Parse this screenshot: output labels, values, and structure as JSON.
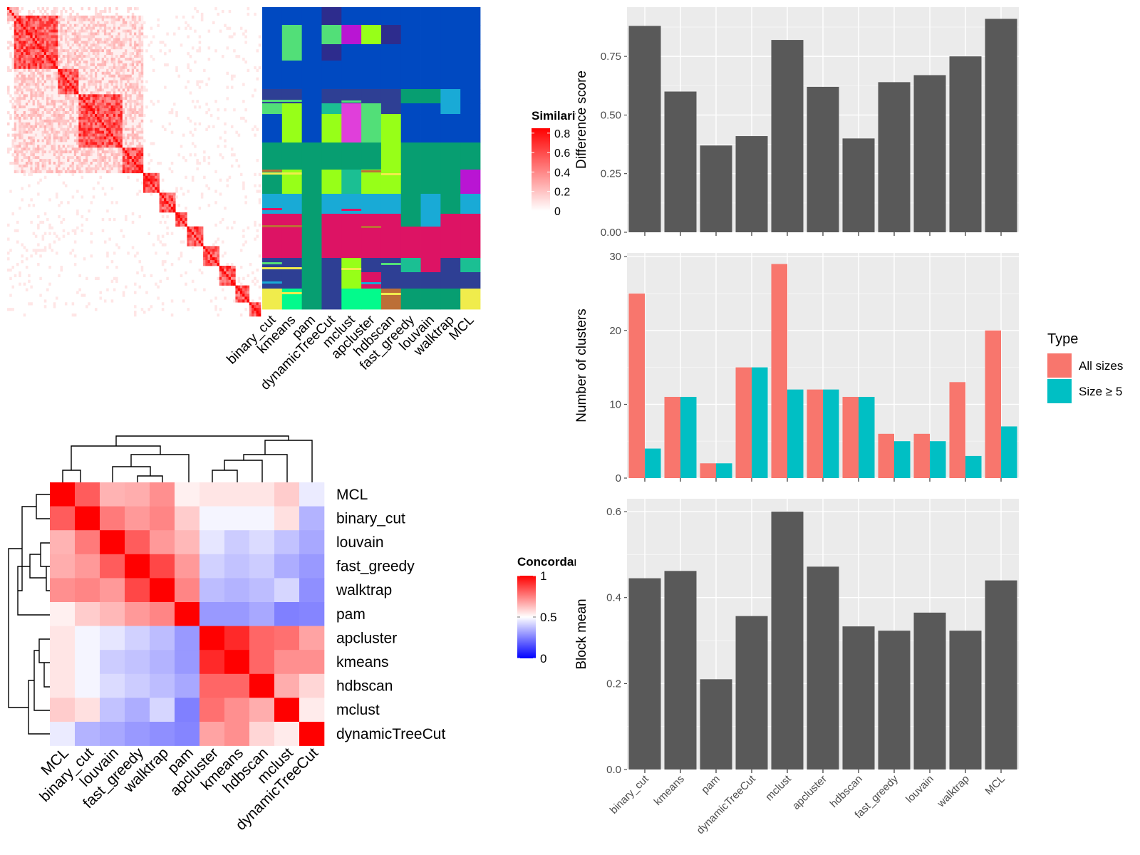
{
  "chart_data": [
    {
      "type": "heatmap",
      "panel": "similarity",
      "legend": {
        "title": "Similarity",
        "ticks": [
          "0",
          "0.2",
          "0.4",
          "0.6",
          "0.8"
        ],
        "colors": {
          "low": "#ffffff",
          "high": "#ff0000"
        }
      },
      "columns": [
        "binary_cut",
        "kmeans",
        "pam",
        "dynamicTreeCut",
        "mclust",
        "apcluster",
        "hdbscan",
        "fast_greedy",
        "louvain",
        "walktrap",
        "MCL"
      ],
      "blocks": [
        [
          0.03,
          0.2
        ],
        [
          0.2,
          0.28
        ],
        [
          0.28,
          0.45
        ],
        [
          0.45,
          0.54
        ],
        [
          0.54,
          0.6
        ],
        [
          0.6,
          0.66
        ],
        [
          0.66,
          0.71
        ],
        [
          0.71,
          0.77
        ],
        [
          0.77,
          0.84
        ],
        [
          0.84,
          0.9
        ],
        [
          0.9,
          0.95
        ],
        [
          0.95,
          1.0
        ]
      ],
      "palette": [
        "#0049c1",
        "#079e71",
        "#dd1364",
        "#2e3f94",
        "#19aad6",
        "#97ff18",
        "#52df78",
        "#b915d3",
        "#e03fda",
        "#ff66b0",
        "#03fa8c",
        "#bc6f37",
        "#f0ec4c",
        "#1bbf93",
        "#2d2c8d"
      ]
    },
    {
      "type": "heatmap",
      "panel": "concordance",
      "legend": {
        "title": "Concordance",
        "ticks": [
          "0",
          "0.5",
          "1"
        ],
        "colors": {
          "low": "#0000ff",
          "mid": "#ffffff",
          "high": "#ff0000"
        }
      },
      "rows": [
        "MCL",
        "binary_cut",
        "louvain",
        "fast_greedy",
        "walktrap",
        "pam",
        "apcluster",
        "kmeans",
        "hdbscan",
        "mclust",
        "dynamicTreeCut"
      ],
      "columns": [
        "MCL",
        "binary_cut",
        "louvain",
        "fast_greedy",
        "walktrap",
        "pam",
        "apcluster",
        "kmeans",
        "hdbscan",
        "mclust",
        "dynamicTreeCut"
      ],
      "values": [
        [
          1.0,
          0.82,
          0.65,
          0.66,
          0.72,
          0.53,
          0.55,
          0.55,
          0.55,
          0.6,
          0.46
        ],
        [
          0.82,
          1.0,
          0.76,
          0.7,
          0.74,
          0.6,
          0.48,
          0.48,
          0.48,
          0.56,
          0.35
        ],
        [
          0.65,
          0.76,
          1.0,
          0.82,
          0.7,
          0.64,
          0.45,
          0.4,
          0.43,
          0.38,
          0.33
        ],
        [
          0.66,
          0.7,
          0.82,
          1.0,
          0.86,
          0.7,
          0.41,
          0.38,
          0.4,
          0.34,
          0.3
        ],
        [
          0.72,
          0.74,
          0.7,
          0.86,
          1.0,
          0.74,
          0.37,
          0.35,
          0.37,
          0.42,
          0.28
        ],
        [
          0.53,
          0.6,
          0.64,
          0.7,
          0.74,
          1.0,
          0.3,
          0.3,
          0.33,
          0.25,
          0.26
        ],
        [
          0.55,
          0.48,
          0.45,
          0.41,
          0.37,
          0.3,
          1.0,
          0.92,
          0.8,
          0.78,
          0.68
        ],
        [
          0.55,
          0.48,
          0.4,
          0.38,
          0.35,
          0.3,
          0.92,
          1.0,
          0.8,
          0.72,
          0.72
        ],
        [
          0.55,
          0.48,
          0.43,
          0.4,
          0.37,
          0.33,
          0.8,
          0.8,
          1.0,
          0.66,
          0.58
        ],
        [
          0.6,
          0.56,
          0.38,
          0.34,
          0.42,
          0.25,
          0.78,
          0.72,
          0.66,
          1.0,
          0.54
        ],
        [
          0.46,
          0.35,
          0.33,
          0.3,
          0.28,
          0.26,
          0.68,
          0.72,
          0.58,
          0.54,
          1.0
        ]
      ]
    },
    {
      "type": "bar",
      "panel": "difference",
      "categories": [
        "binary_cut",
        "kmeans",
        "pam",
        "dynamicTreeCut",
        "mclust",
        "apcluster",
        "hdbscan",
        "fast_greedy",
        "louvain",
        "walktrap",
        "MCL"
      ],
      "values": [
        0.88,
        0.6,
        0.37,
        0.41,
        0.82,
        0.62,
        0.4,
        0.64,
        0.67,
        0.75,
        0.91
      ],
      "ylabel": "Difference score",
      "ylim": [
        0,
        0.96
      ],
      "yticks": [
        "0.00",
        "0.25",
        "0.50",
        "0.75"
      ],
      "bar_color": "#595959"
    },
    {
      "type": "bar",
      "panel": "clusters",
      "categories": [
        "binary_cut",
        "kmeans",
        "pam",
        "dynamicTreeCut",
        "mclust",
        "apcluster",
        "hdbscan",
        "fast_greedy",
        "louvain",
        "walktrap",
        "MCL"
      ],
      "series": [
        {
          "name": "All sizes",
          "values": [
            25,
            11,
            2,
            15,
            29,
            12,
            11,
            6,
            6,
            13,
            20
          ],
          "color": "#f8766d"
        },
        {
          "name": "Size ≥ 5",
          "values": [
            4,
            11,
            2,
            15,
            12,
            12,
            11,
            5,
            5,
            3,
            7
          ],
          "color": "#00bfc4"
        }
      ],
      "ylabel": "Number of clusters",
      "ylim": [
        0,
        30.5
      ],
      "yticks": [
        "0",
        "10",
        "20",
        "30"
      ],
      "legend_title": "Type",
      "legend_position": "right"
    },
    {
      "type": "bar",
      "panel": "blockmean",
      "categories": [
        "binary_cut",
        "kmeans",
        "pam",
        "dynamicTreeCut",
        "mclust",
        "apcluster",
        "hdbscan",
        "fast_greedy",
        "louvain",
        "walktrap",
        "MCL"
      ],
      "values": [
        0.445,
        0.462,
        0.21,
        0.357,
        0.6,
        0.472,
        0.333,
        0.323,
        0.365,
        0.323,
        0.44
      ],
      "ylabel": "Block mean",
      "ylim": [
        0,
        0.63
      ],
      "yticks": [
        "0.0",
        "0.2",
        "0.4",
        "0.6"
      ],
      "bar_color": "#595959"
    }
  ]
}
